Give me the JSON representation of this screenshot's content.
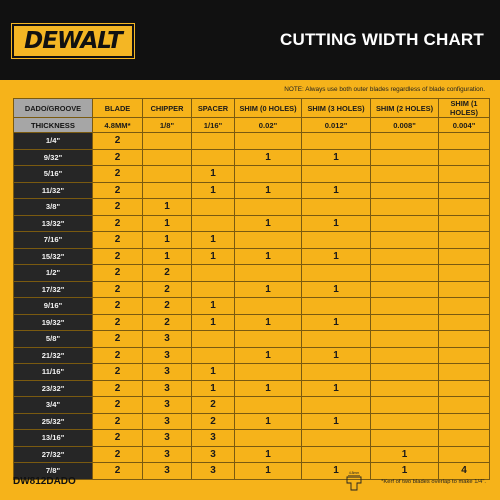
{
  "brand": {
    "logo_text": "DEWALT",
    "accent": "#f6b31a",
    "dark": "#111111"
  },
  "title": "CUTTING WIDTH CHART",
  "note": "NOTE: Always use both outer blades regardless of blade configuration.",
  "table": {
    "headers": [
      "DADO/GROOVE",
      "BLADE",
      "CHIPPER",
      "SPACER",
      "SHIM (0 HOLES)",
      "SHIM (3 HOLES)",
      "SHIM (2 HOLES)",
      "SHIM (1 HOLES)"
    ],
    "thickness": [
      "THICKNESS",
      "4.8MM*",
      "1/8\"",
      "1/16\"",
      "0.02\"",
      "0.012\"",
      "0.008\"",
      "0.004\""
    ],
    "rows": [
      [
        "1/4\"",
        "2",
        "",
        "",
        "",
        "",
        "",
        ""
      ],
      [
        "9/32\"",
        "2",
        "",
        "",
        "1",
        "1",
        "",
        ""
      ],
      [
        "5/16\"",
        "2",
        "",
        "1",
        "",
        "",
        "",
        ""
      ],
      [
        "11/32\"",
        "2",
        "",
        "1",
        "1",
        "1",
        "",
        ""
      ],
      [
        "3/8\"",
        "2",
        "1",
        "",
        "",
        "",
        "",
        ""
      ],
      [
        "13/32\"",
        "2",
        "1",
        "",
        "1",
        "1",
        "",
        ""
      ],
      [
        "7/16\"",
        "2",
        "1",
        "1",
        "",
        "",
        "",
        ""
      ],
      [
        "15/32\"",
        "2",
        "1",
        "1",
        "1",
        "1",
        "",
        ""
      ],
      [
        "1/2\"",
        "2",
        "2",
        "",
        "",
        "",
        "",
        ""
      ],
      [
        "17/32\"",
        "2",
        "2",
        "",
        "1",
        "1",
        "",
        ""
      ],
      [
        "9/16\"",
        "2",
        "2",
        "1",
        "",
        "",
        "",
        ""
      ],
      [
        "19/32\"",
        "2",
        "2",
        "1",
        "1",
        "1",
        "",
        ""
      ],
      [
        "5/8\"",
        "2",
        "3",
        "",
        "",
        "",
        "",
        ""
      ],
      [
        "21/32\"",
        "2",
        "3",
        "",
        "1",
        "1",
        "",
        ""
      ],
      [
        "11/16\"",
        "2",
        "3",
        "1",
        "",
        "",
        "",
        ""
      ],
      [
        "23/32\"",
        "2",
        "3",
        "1",
        "1",
        "1",
        "",
        ""
      ],
      [
        "3/4\"",
        "2",
        "3",
        "2",
        "",
        "",
        "",
        ""
      ],
      [
        "25/32\"",
        "2",
        "3",
        "2",
        "1",
        "1",
        "",
        ""
      ],
      [
        "13/16\"",
        "2",
        "3",
        "3",
        "",
        "",
        "",
        ""
      ],
      [
        "27/32\"",
        "2",
        "3",
        "3",
        "1",
        "",
        "1",
        ""
      ],
      [
        "7/8\"",
        "2",
        "3",
        "3",
        "1",
        "1",
        "1",
        "4"
      ]
    ]
  },
  "model": "DW812DADO",
  "kerf_icon_label": "4.8mm",
  "kerf_note": "*Kerf of two blades overlap to make 1/4\"."
}
